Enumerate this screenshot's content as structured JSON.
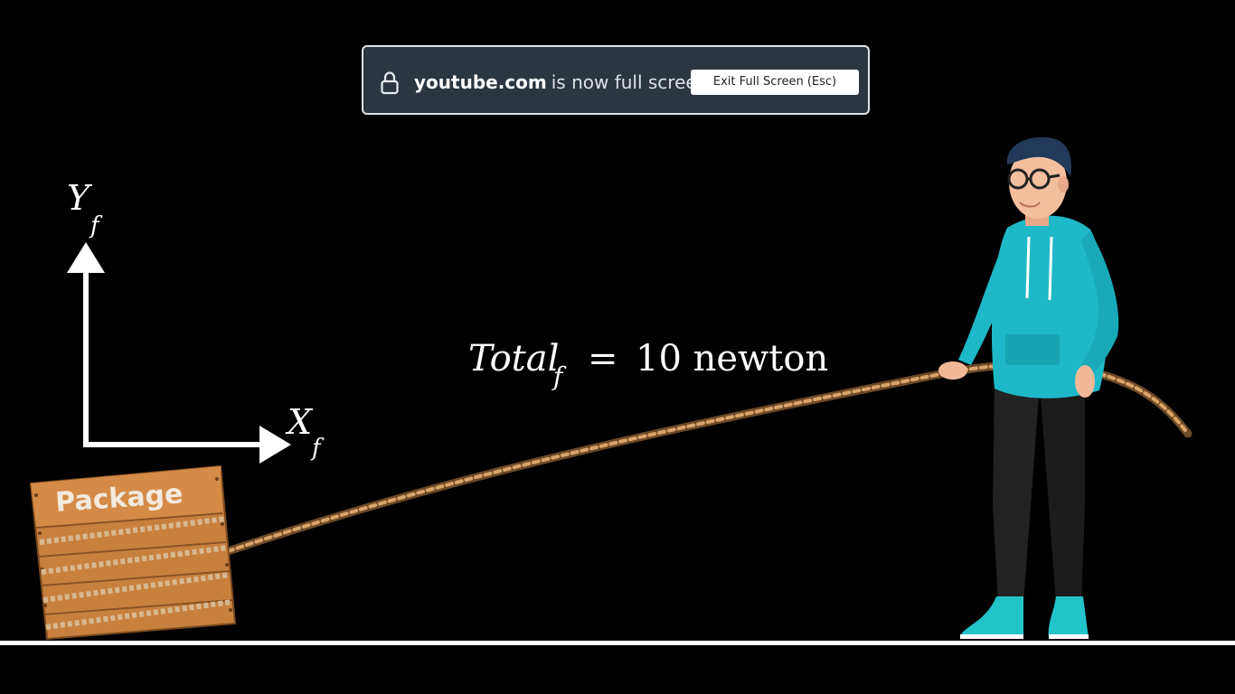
{
  "fullscreen_banner": {
    "domain": "youtube.com",
    "message": "is now full screen",
    "exit_button_label": "Exit Full Screen (Esc)",
    "icon": "lock-icon"
  },
  "video_frame": {
    "axis_y_label": "Y",
    "axis_y_subscript": "f",
    "axis_x_label": "X",
    "axis_x_subscript": "f",
    "equation_lhs": "Total",
    "equation_subscript": "f",
    "equation_operator": "=",
    "equation_rhs": "10 newton",
    "package_label": "Package"
  },
  "colors": {
    "background": "#000000",
    "banner_background": "#2b3640",
    "banner_border": "#dfe3e8",
    "hoodie": "#1fb8c8",
    "pants": "#222222",
    "rope": "#c9965e",
    "crate": "#c8803f",
    "ground_line": "#ffffff"
  }
}
